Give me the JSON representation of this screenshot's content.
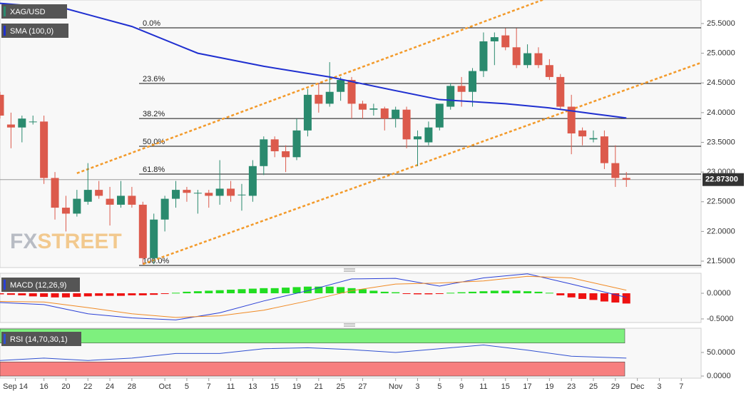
{
  "chart_data": [
    {
      "type": "candlestick",
      "title": "XAG/USD",
      "watermark": [
        "FX",
        "STREET"
      ],
      "up_color": "#2a8a6e",
      "down_color": "#dc5a4c",
      "open": [
        24.3,
        23.8,
        23.75,
        23.85,
        23.85,
        22.9,
        22.4,
        22.3,
        22.5,
        22.7,
        22.55,
        22.45,
        22.6,
        22.45,
        21.55,
        22.2,
        22.55,
        22.7,
        22.65,
        22.65,
        22.6,
        22.72,
        22.62,
        22.6,
        23.1,
        23.55,
        23.35,
        23.25,
        23.7,
        24.3,
        24.15,
        24.35,
        24.55,
        24.15,
        24.05,
        24.07,
        23.9,
        24.05,
        23.55,
        23.5,
        23.75,
        24.1,
        24.45,
        24.35,
        24.7,
        25.2,
        25.3,
        25.1,
        24.8,
        25.0,
        24.8,
        24.6,
        24.1,
        23.7,
        23.55,
        23.6,
        23.15,
        22.9
      ],
      "high": [
        24.35,
        24.0,
        23.95,
        23.95,
        23.95,
        23.0,
        22.6,
        22.7,
        23.15,
        22.85,
        22.75,
        22.85,
        22.75,
        22.5,
        22.3,
        22.6,
        22.85,
        22.75,
        22.7,
        22.7,
        23.2,
        22.85,
        22.8,
        23.2,
        23.6,
        23.6,
        23.45,
        23.9,
        24.4,
        24.5,
        24.85,
        24.6,
        24.6,
        24.2,
        24.15,
        24.1,
        24.1,
        24.1,
        23.7,
        23.85,
        24.15,
        24.5,
        24.6,
        24.75,
        25.35,
        25.35,
        25.42,
        25.42,
        25.15,
        25.1,
        24.9,
        24.65,
        24.3,
        23.75,
        23.7,
        23.7,
        23.45,
        23.0
      ],
      "low": [
        23.9,
        23.4,
        23.5,
        23.8,
        22.8,
        22.2,
        22.0,
        22.25,
        22.45,
        22.55,
        22.1,
        22.4,
        22.4,
        21.45,
        21.45,
        22.0,
        22.4,
        22.5,
        22.3,
        22.4,
        22.45,
        22.5,
        22.35,
        22.5,
        22.95,
        23.25,
        23.0,
        23.2,
        23.6,
        24.0,
        24.1,
        24.2,
        23.9,
        23.9,
        23.95,
        23.7,
        23.75,
        23.4,
        23.1,
        23.45,
        23.7,
        24.05,
        24.1,
        24.1,
        24.6,
        24.8,
        25.05,
        24.75,
        24.75,
        24.75,
        24.55,
        24.05,
        23.3,
        23.45,
        23.5,
        23.05,
        22.75,
        22.75
      ],
      "close": [
        23.95,
        23.75,
        23.9,
        23.85,
        22.9,
        22.4,
        22.3,
        22.55,
        22.7,
        22.6,
        22.45,
        22.6,
        22.45,
        21.55,
        22.2,
        22.55,
        22.7,
        22.65,
        22.65,
        22.6,
        22.72,
        22.6,
        22.62,
        23.1,
        23.55,
        23.35,
        23.25,
        23.7,
        24.3,
        24.15,
        24.35,
        24.55,
        24.15,
        24.05,
        24.07,
        23.9,
        24.05,
        23.55,
        23.6,
        23.75,
        24.15,
        24.45,
        24.35,
        24.7,
        25.2,
        25.27,
        25.1,
        24.8,
        25.0,
        24.8,
        24.6,
        24.1,
        23.65,
        23.6,
        23.57,
        23.15,
        22.9,
        22.87
      ],
      "xlim": [
        0,
        63.8
      ],
      "xticks": [
        {
          "value": 1.4,
          "label": "Sep 14"
        },
        {
          "value": 4,
          "label": "16"
        },
        {
          "value": 6,
          "label": "20"
        },
        {
          "value": 8,
          "label": "22"
        },
        {
          "value": 10,
          "label": "24"
        },
        {
          "value": 12,
          "label": "28"
        },
        {
          "value": 15,
          "label": "Oct"
        },
        {
          "value": 17,
          "label": "5"
        },
        {
          "value": 19,
          "label": "7"
        },
        {
          "value": 21,
          "label": "11"
        },
        {
          "value": 23,
          "label": "13"
        },
        {
          "value": 25,
          "label": "15"
        },
        {
          "value": 27,
          "label": "19"
        },
        {
          "value": 29,
          "label": "21"
        },
        {
          "value": 31,
          "label": "25"
        },
        {
          "value": 33,
          "label": "27"
        },
        {
          "value": 36,
          "label": "Nov"
        },
        {
          "value": 38,
          "label": "3"
        },
        {
          "value": 40,
          "label": "5"
        },
        {
          "value": 42,
          "label": "9"
        },
        {
          "value": 44,
          "label": "11"
        },
        {
          "value": 46,
          "label": "15"
        },
        {
          "value": 48,
          "label": "17"
        },
        {
          "value": 50,
          "label": "19"
        },
        {
          "value": 52,
          "label": "23"
        },
        {
          "value": 54,
          "label": "25"
        },
        {
          "value": 56,
          "label": "29"
        },
        {
          "value": 58,
          "label": "Dec"
        },
        {
          "value": 60,
          "label": "3"
        },
        {
          "value": 62,
          "label": "7"
        }
      ],
      "ylim": [
        21.392,
        25.896
      ],
      "yticks": [
        {
          "value": 21.5,
          "label": "21.5000"
        },
        {
          "value": 22,
          "label": "22.0000"
        },
        {
          "value": 22.5,
          "label": "22.5000"
        },
        {
          "value": 23,
          "label": "23.0000"
        },
        {
          "value": 23.5,
          "label": "23.5000"
        },
        {
          "value": 24,
          "label": "24.0000"
        },
        {
          "value": 24.5,
          "label": "24.5000"
        },
        {
          "value": 25,
          "label": "25.0000"
        },
        {
          "value": 25.5,
          "label": "25.5000"
        }
      ],
      "last_price": {
        "value": 22.873,
        "label": "22.87300"
      },
      "sma": {
        "name": "SMA (100,0)",
        "color": "#1f2fd0",
        "x": [
          0,
          6,
          12,
          18,
          24,
          30,
          36,
          40,
          46,
          50,
          54,
          57
        ],
        "values": [
          25.84,
          25.75,
          25.45,
          25.0,
          24.78,
          24.6,
          24.37,
          24.22,
          24.15,
          24.08,
          23.98,
          23.91
        ]
      },
      "fib_levels": [
        {
          "value": 25.428,
          "label": "0.0%"
        },
        {
          "value": 24.491,
          "label": "23.6%"
        },
        {
          "value": 23.9,
          "label": "38.2%"
        },
        {
          "value": 23.434,
          "label": "50.0%"
        },
        {
          "value": 22.965,
          "label": "61.8%"
        },
        {
          "value": 21.428,
          "label": "100.0%"
        }
      ],
      "trendlines": [
        {
          "color": "#f39a2a",
          "x": [
            7,
            49.4
          ],
          "values": [
            22.98,
            25.9
          ]
        },
        {
          "color": "#f39a2a",
          "x": [
            13,
            63.8
          ],
          "values": [
            21.45,
            24.84
          ]
        }
      ]
    },
    {
      "type": "macd",
      "title": "MACD (12,26,9)",
      "histogram": {
        "up_color": "#22dd22",
        "down_color": "#ee1111",
        "values": [
          -0.02,
          -0.03,
          -0.04,
          -0.06,
          -0.07,
          -0.08,
          -0.08,
          -0.07,
          -0.06,
          -0.05,
          -0.05,
          -0.05,
          -0.04,
          -0.04,
          -0.03,
          -0.01,
          0.01,
          0.03,
          0.04,
          0.05,
          0.06,
          0.07,
          0.08,
          0.09,
          0.1,
          0.1,
          0.11,
          0.12,
          0.13,
          0.13,
          0.13,
          0.12,
          0.1,
          0.08,
          0.05,
          0.03,
          0.02,
          -0.01,
          -0.02,
          -0.02,
          -0.01,
          0.01,
          0.02,
          0.03,
          0.04,
          0.05,
          0.05,
          0.05,
          0.04,
          0.03,
          0.01,
          -0.04,
          -0.08,
          -0.11,
          -0.13,
          -0.16,
          -0.18,
          -0.2
        ]
      },
      "macd": {
        "color": "#2a3fd6",
        "x": [
          0,
          4,
          8,
          12,
          16,
          20,
          24,
          28,
          32,
          36,
          40,
          44,
          48,
          52,
          57
        ],
        "values": [
          -0.18,
          -0.22,
          -0.4,
          -0.48,
          -0.52,
          -0.38,
          -0.15,
          0.05,
          0.28,
          0.29,
          0.14,
          0.3,
          0.38,
          0.18,
          -0.08
        ]
      },
      "signal": {
        "color": "#f08a24",
        "x": [
          0,
          4,
          8,
          12,
          16,
          20,
          24,
          28,
          32,
          36,
          40,
          44,
          48,
          52,
          57
        ],
        "values": [
          -0.16,
          -0.17,
          -0.28,
          -0.4,
          -0.47,
          -0.44,
          -0.33,
          -0.15,
          0.05,
          0.18,
          0.2,
          0.24,
          0.33,
          0.3,
          0.06
        ]
      },
      "ylim": [
        -0.57,
        0.39
      ],
      "yticks": [
        {
          "value": 0,
          "label": "0.0000"
        },
        {
          "value": -0.5,
          "label": "-0.5000"
        }
      ]
    },
    {
      "type": "rsi",
      "title": "RSI (14,70,30,1)",
      "line": {
        "color": "#3050d0",
        "x": [
          0,
          4,
          8,
          12,
          16,
          20,
          24,
          28,
          32,
          36,
          40,
          44,
          48,
          52,
          57
        ],
        "values": [
          33,
          38,
          33,
          38,
          48,
          48,
          58,
          60,
          56,
          50,
          58,
          66,
          55,
          42,
          38
        ]
      },
      "zones": [
        {
          "from": 70,
          "to": 100,
          "color": "#7ef07e"
        },
        {
          "from": 0,
          "to": 30,
          "color": "#f77f7f"
        }
      ],
      "ylim": [
        -4.5,
        101.5
      ],
      "yticks": [
        {
          "value": 0,
          "label": "0.0000"
        },
        {
          "value": 50,
          "label": "50.0000"
        }
      ]
    }
  ]
}
